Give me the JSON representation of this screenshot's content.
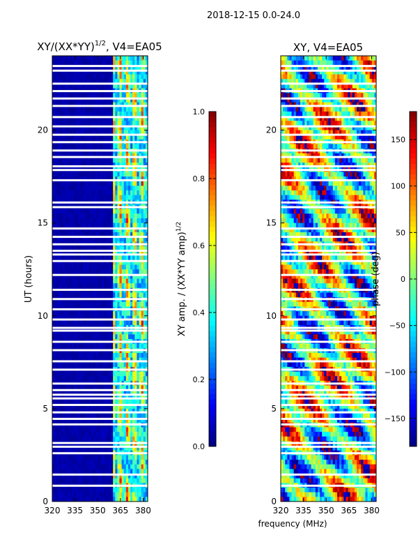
{
  "figure": {
    "suptitle": "2018-12-15 0.0-24.0",
    "xlabel": "frequency (MHz)"
  },
  "colors": {
    "jet": [
      "#000080",
      "#0000ff",
      "#0080ff",
      "#00ffff",
      "#80ff80",
      "#ffff00",
      "#ff8000",
      "#ff0000",
      "#800000"
    ],
    "background": "#ffffff",
    "gap": "#ffffff"
  },
  "chart_data": [
    {
      "type": "heatmap",
      "title": "XY/(XX*YY)",
      "title_sup": "1/2",
      "title_suffix": ", V4=EA05",
      "xlabel": "",
      "ylabel": "UT (hours)",
      "xlim": [
        320,
        383
      ],
      "ylim": [
        0,
        24
      ],
      "xticks": [
        320,
        335,
        350,
        365,
        380
      ],
      "yticks": [
        0,
        5,
        10,
        15,
        20
      ],
      "active_band_mhz": [
        360,
        382
      ],
      "colorbar": {
        "label": "XY amp. / (XX*YY amp)",
        "label_sup": "1/2",
        "range": [
          0.0,
          1.0
        ],
        "ticks": [
          0.0,
          0.2,
          0.4,
          0.6,
          0.8,
          1.0
        ],
        "tick_labels": [
          "0.0",
          "0.2",
          "0.4",
          "0.6",
          "0.8",
          "1.0"
        ]
      }
    },
    {
      "type": "heatmap",
      "title": "XY, V4=EA05",
      "xlabel": "frequency (MHz)",
      "ylabel": "",
      "xlim": [
        320,
        383
      ],
      "ylim": [
        0,
        24
      ],
      "xticks": [
        320,
        335,
        350,
        365,
        380
      ],
      "yticks": [
        0,
        5,
        10,
        15,
        20
      ],
      "colorbar": {
        "label": "phase (deg)",
        "range": [
          -180,
          180
        ],
        "ticks": [
          -150,
          -100,
          -50,
          0,
          50,
          100,
          150
        ],
        "tick_labels": [
          "−150",
          "−100",
          "−50",
          "0",
          "50",
          "100",
          "150"
        ]
      }
    }
  ],
  "flagged_ut_hours": [
    0.85,
    1.45,
    2.6,
    2.95,
    3.15,
    4.15,
    4.45,
    4.8,
    5.2,
    5.55,
    5.75,
    6.0,
    6.35,
    7.1,
    7.55,
    8.15,
    8.6,
    9.2,
    9.35,
    9.8,
    10.35,
    10.9,
    11.4,
    12.2,
    12.95,
    13.3,
    13.5,
    13.85,
    14.25,
    14.7,
    15.85,
    16.1,
    17.3,
    17.85,
    18.05,
    18.55,
    18.9,
    19.35,
    19.75,
    20.2,
    20.7,
    21.3,
    21.7,
    22.1,
    22.5,
    23.2,
    23.45
  ]
}
